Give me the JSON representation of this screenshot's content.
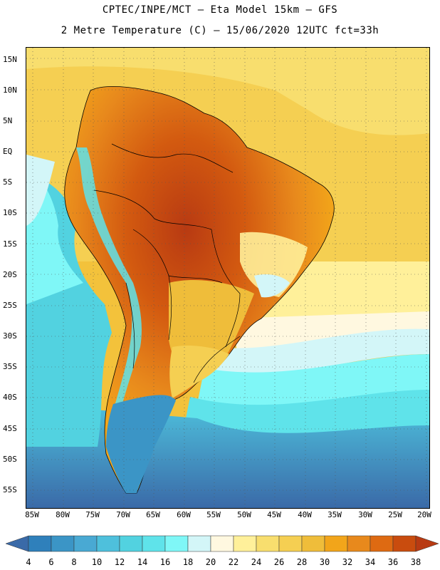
{
  "title": {
    "line1": "CPTEC/INPE/MCT –  Eta Model 15km – GFS",
    "line2": "2 Metre Temperature (C) – 15/06/2020 12UTC fct=33h"
  },
  "map": {
    "lat_labels": [
      "15N",
      "10N",
      "5N",
      "EQ",
      "5S",
      "10S",
      "15S",
      "20S",
      "25S",
      "30S",
      "35S",
      "40S",
      "45S",
      "50S",
      "55S"
    ],
    "lon_labels": [
      "85W",
      "80W",
      "75W",
      "70W",
      "65W",
      "60W",
      "55W",
      "50W",
      "45W",
      "40W",
      "35W",
      "30W",
      "25W",
      "20W"
    ],
    "ocean_color": "#f3c23b"
  },
  "colorbar": {
    "labels": [
      "4",
      "6",
      "8",
      "10",
      "12",
      "14",
      "16",
      "18",
      "20",
      "22",
      "24",
      "26",
      "28",
      "30",
      "32",
      "34",
      "36",
      "38"
    ],
    "colors": [
      "#3a6aa8",
      "#2f80bb",
      "#3b95c6",
      "#49a9d3",
      "#4ec0dc",
      "#52d2e0",
      "#5fe3ea",
      "#7ff7f7",
      "#d3f6f8",
      "#fff8e0",
      "#fff09a",
      "#f8de6e",
      "#f5cf52",
      "#efbd3a",
      "#f2a51a",
      "#e8891c",
      "#de6a12",
      "#c94c0e",
      "#b83a12"
    ]
  }
}
